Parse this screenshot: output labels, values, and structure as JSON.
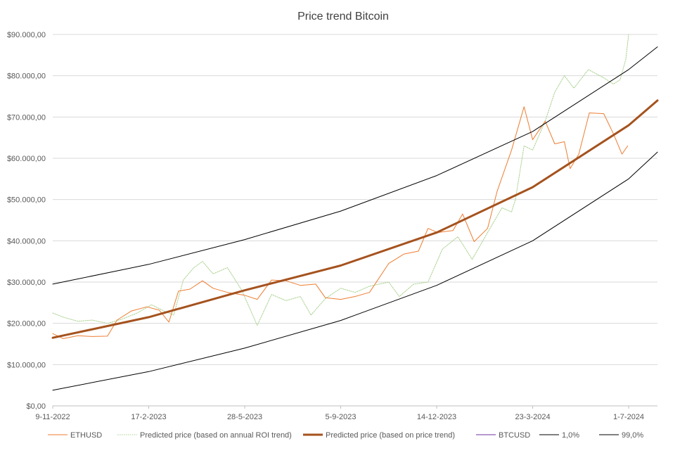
{
  "chart_data": {
    "type": "line",
    "title": "Price trend Bitcoin",
    "xlabel": "",
    "ylabel": "",
    "ylim": [
      0,
      90000
    ],
    "yticks": [
      0,
      10000,
      20000,
      30000,
      40000,
      50000,
      60000,
      70000,
      80000,
      90000
    ],
    "ytick_labels": [
      "$0,00",
      "$10.000,00",
      "$20.000,00",
      "$30.000,00",
      "$40.000,00",
      "$50.000,00",
      "$60.000,00",
      "$70.000,00",
      "$80.000,00",
      "$90.000,00"
    ],
    "xlim": [
      "2022-11-09",
      "2024-07-31"
    ],
    "xtick_labels": [
      "9-11-2022",
      "17-2-2023",
      "28-5-2023",
      "5-9-2023",
      "14-12-2023",
      "23-3-2024",
      "1-7-2024"
    ],
    "xtick_dates": [
      "2022-11-09",
      "2023-02-17",
      "2023-05-28",
      "2023-09-05",
      "2023-12-14",
      "2024-03-23",
      "2024-07-01"
    ],
    "grid": true,
    "legend_position": "bottom",
    "series": [
      {
        "name": "ETHUSD",
        "style": "thin",
        "color": "#ed7d31",
        "points": [
          [
            "2022-11-09",
            17500
          ],
          [
            "2022-11-20",
            16300
          ],
          [
            "2022-12-05",
            17000
          ],
          [
            "2022-12-20",
            16800
          ],
          [
            "2023-01-05",
            16900
          ],
          [
            "2023-01-15",
            20800
          ],
          [
            "2023-01-30",
            23000
          ],
          [
            "2023-02-15",
            24000
          ],
          [
            "2023-02-28",
            23200
          ],
          [
            "2023-03-10",
            20300
          ],
          [
            "2023-03-20",
            27800
          ],
          [
            "2023-04-01",
            28300
          ],
          [
            "2023-04-14",
            30300
          ],
          [
            "2023-04-25",
            28500
          ],
          [
            "2023-05-10",
            27500
          ],
          [
            "2023-05-28",
            26800
          ],
          [
            "2023-06-10",
            25800
          ],
          [
            "2023-06-25",
            30500
          ],
          [
            "2023-07-10",
            30300
          ],
          [
            "2023-07-25",
            29200
          ],
          [
            "2023-08-10",
            29500
          ],
          [
            "2023-08-20",
            26200
          ],
          [
            "2023-09-05",
            25800
          ],
          [
            "2023-09-20",
            26500
          ],
          [
            "2023-10-05",
            27500
          ],
          [
            "2023-10-25",
            34500
          ],
          [
            "2023-11-10",
            36800
          ],
          [
            "2023-11-25",
            37500
          ],
          [
            "2023-12-05",
            43000
          ],
          [
            "2023-12-15",
            42000
          ],
          [
            "2023-12-31",
            42500
          ],
          [
            "2024-01-10",
            46500
          ],
          [
            "2024-01-22",
            39800
          ],
          [
            "2024-02-05",
            43000
          ],
          [
            "2024-02-15",
            52000
          ],
          [
            "2024-03-01",
            62000
          ],
          [
            "2024-03-14",
            72500
          ],
          [
            "2024-03-23",
            64500
          ],
          [
            "2024-04-05",
            69000
          ],
          [
            "2024-04-15",
            63500
          ],
          [
            "2024-04-25",
            64000
          ],
          [
            "2024-05-01",
            57500
          ],
          [
            "2024-05-10",
            61000
          ],
          [
            "2024-05-21",
            71000
          ],
          [
            "2024-06-05",
            70800
          ],
          [
            "2024-06-15",
            66000
          ],
          [
            "2024-06-24",
            61000
          ],
          [
            "2024-06-30",
            63000
          ]
        ]
      },
      {
        "name": "Predicted price (based on annual ROI trend)",
        "style": "dotted",
        "color": "#a9d18e",
        "points": [
          [
            "2022-11-09",
            22500
          ],
          [
            "2022-11-20",
            21500
          ],
          [
            "2022-12-05",
            20500
          ],
          [
            "2022-12-20",
            20800
          ],
          [
            "2023-01-05",
            20000
          ],
          [
            "2023-01-20",
            21000
          ],
          [
            "2023-02-05",
            22500
          ],
          [
            "2023-02-20",
            24500
          ],
          [
            "2023-03-05",
            23000
          ],
          [
            "2023-03-15",
            22000
          ],
          [
            "2023-03-25",
            30500
          ],
          [
            "2023-04-05",
            33500
          ],
          [
            "2023-04-14",
            35000
          ],
          [
            "2023-04-25",
            32000
          ],
          [
            "2023-05-10",
            33500
          ],
          [
            "2023-05-25",
            28000
          ],
          [
            "2023-06-10",
            19500
          ],
          [
            "2023-06-25",
            27000
          ],
          [
            "2023-07-10",
            25500
          ],
          [
            "2023-07-25",
            26500
          ],
          [
            "2023-08-05",
            22000
          ],
          [
            "2023-08-20",
            26000
          ],
          [
            "2023-09-05",
            28500
          ],
          [
            "2023-09-20",
            27500
          ],
          [
            "2023-10-05",
            29000
          ],
          [
            "2023-10-25",
            30000
          ],
          [
            "2023-11-05",
            26500
          ],
          [
            "2023-11-20",
            29500
          ],
          [
            "2023-12-05",
            30000
          ],
          [
            "2023-12-20",
            38000
          ],
          [
            "2024-01-05",
            41000
          ],
          [
            "2024-01-20",
            35500
          ],
          [
            "2024-02-05",
            42000
          ],
          [
            "2024-02-20",
            48000
          ],
          [
            "2024-03-01",
            47000
          ],
          [
            "2024-03-05",
            50000
          ],
          [
            "2024-03-14",
            63000
          ],
          [
            "2024-03-23",
            62000
          ],
          [
            "2024-04-05",
            69000
          ],
          [
            "2024-04-15",
            76000
          ],
          [
            "2024-04-25",
            80000
          ],
          [
            "2024-05-05",
            77000
          ],
          [
            "2024-05-20",
            81500
          ],
          [
            "2024-06-05",
            79500
          ],
          [
            "2024-06-15",
            78000
          ],
          [
            "2024-06-22",
            79000
          ],
          [
            "2024-06-28",
            84000
          ],
          [
            "2024-07-01",
            90000
          ]
        ]
      },
      {
        "name": "Predicted price (based on price trend)",
        "style": "thick",
        "color": "#a5521e",
        "points": [
          [
            "2022-11-09",
            16500
          ],
          [
            "2023-02-17",
            21500
          ],
          [
            "2023-05-28",
            28000
          ],
          [
            "2023-09-05",
            34000
          ],
          [
            "2023-12-14",
            42000
          ],
          [
            "2024-03-23",
            53000
          ],
          [
            "2024-07-01",
            68000
          ],
          [
            "2024-07-31",
            74000
          ]
        ]
      },
      {
        "name": "BTCUSD",
        "style": "thin",
        "color": "#7030a0",
        "points": []
      },
      {
        "name": "1,0%",
        "style": "thin",
        "color": "#000000",
        "points": [
          [
            "2022-11-09",
            3800
          ],
          [
            "2023-02-17",
            8300
          ],
          [
            "2023-05-28",
            14000
          ],
          [
            "2023-09-05",
            20700
          ],
          [
            "2023-12-14",
            29200
          ],
          [
            "2024-03-23",
            40000
          ],
          [
            "2024-07-01",
            55000
          ],
          [
            "2024-07-31",
            61500
          ]
        ]
      },
      {
        "name": "99,0%",
        "style": "thin",
        "color": "#000000",
        "points": [
          [
            "2022-11-09",
            29500
          ],
          [
            "2023-02-17",
            34300
          ],
          [
            "2023-05-28",
            40300
          ],
          [
            "2023-09-05",
            47200
          ],
          [
            "2023-12-14",
            55800
          ],
          [
            "2024-03-23",
            66500
          ],
          [
            "2024-07-01",
            81500
          ],
          [
            "2024-07-31",
            87000
          ]
        ]
      }
    ]
  }
}
